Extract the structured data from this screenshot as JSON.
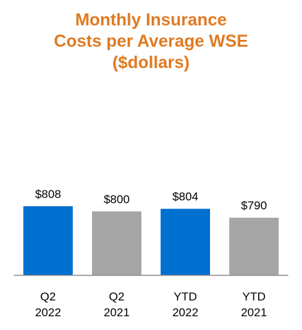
{
  "chart_data": {
    "type": "bar",
    "title_lines": [
      "Monthly Insurance",
      "Costs per Average WSE",
      "($dollars)"
    ],
    "categories": [
      [
        "Q2",
        "2022"
      ],
      [
        "Q2",
        "2021"
      ],
      [
        "YTD",
        "2022"
      ],
      [
        "YTD",
        "2021"
      ]
    ],
    "values": [
      808,
      800,
      804,
      790
    ],
    "value_labels": [
      "$808",
      "$800",
      "$804",
      "$790"
    ],
    "bar_colors": [
      "#0070D0",
      "#A6A6A6",
      "#0070D0",
      "#A6A6A6"
    ],
    "title_color": "#E07A22",
    "baseline_color": "#8C8C8C",
    "xlabel": "",
    "ylabel": "",
    "grid": false
  }
}
